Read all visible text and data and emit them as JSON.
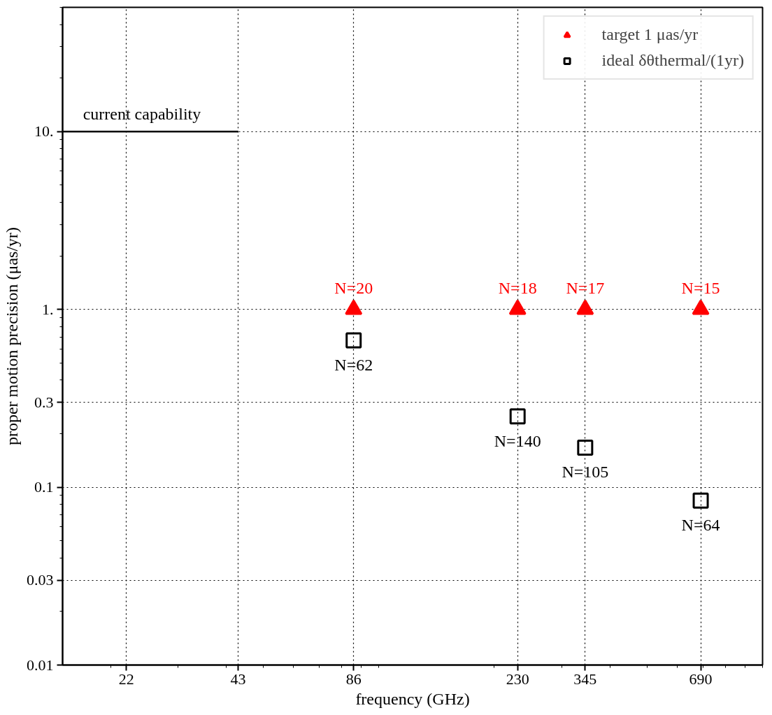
{
  "chart_data": {
    "type": "scatter",
    "xlabel": "frequency (GHz)",
    "ylabel": "proper motion precision (μas/yr)",
    "log": "xy",
    "xlim": [
      15,
      1000
    ],
    "ylim": [
      0.01,
      50
    ],
    "xticks": [
      22,
      43,
      86,
      230,
      345,
      690
    ],
    "yticks": [
      0.01,
      0.03,
      0.1,
      0.3,
      {
        "value": 1,
        "label": "1."
      },
      {
        "value": 10,
        "label": "10."
      }
    ],
    "grid": true,
    "legend": "top right",
    "series": [
      {
        "name": "target 1 μas/yr",
        "marker": "triangle",
        "color": "#ff0000",
        "x": [
          86,
          230,
          345,
          690
        ],
        "values": [
          1,
          1,
          1,
          1
        ]
      },
      {
        "name": "ideal δθthermal/(1yr)",
        "marker": "square",
        "color": "#000000",
        "x": [
          86,
          230,
          345,
          690
        ],
        "values": [
          0.67,
          0.25,
          0.167,
          0.084
        ]
      },
      {
        "name": "current capability",
        "type": "line",
        "marker": "none",
        "line_style": "solid",
        "color": "#000000",
        "x": [
          15,
          43
        ],
        "values": [
          10,
          10
        ]
      }
    ],
    "annotations": [
      {
        "text": "N=20",
        "x": 86,
        "y": 1
      },
      {
        "text": "N=18",
        "x": 230,
        "y": 1
      },
      {
        "text": "N=17",
        "x": 345,
        "y": 1
      },
      {
        "text": "N=15",
        "x": 690,
        "y": 1
      },
      {
        "text": "N=62",
        "x": 86,
        "y": 0.67
      },
      {
        "text": "N=140",
        "x": 230,
        "y": 0.25
      },
      {
        "text": "N=105",
        "x": 345,
        "y": 0.167
      },
      {
        "text": "N=64",
        "x": 690,
        "y": 0.084
      }
    ]
  }
}
